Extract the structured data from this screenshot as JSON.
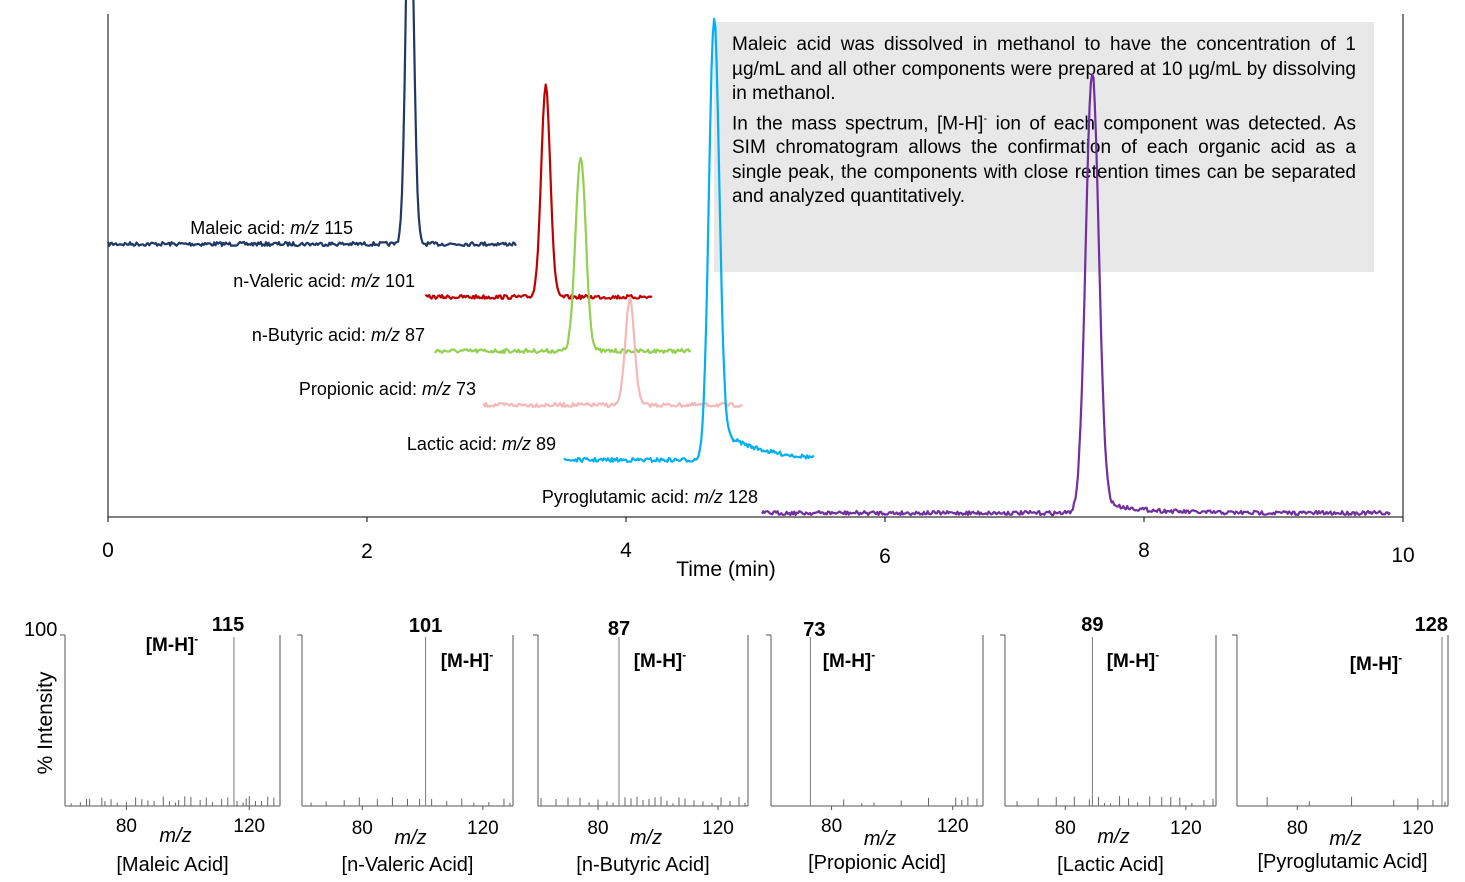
{
  "annotation": {
    "paragraph1": "Maleic acid was dissolved in methanol to have the concentration of 1 µg/mL and all other components were prepared at 10 µg/mL by dissolving in methanol.",
    "paragraph2_before": "In the mass spectrum, [M-H]",
    "paragraph2_sup": "-",
    "paragraph2_after": " ion of each component was detected. As SIM chromatogram allows the confirmation of each organic acid as a single peak, the components with close retention times can be separated and analyzed quantitatively."
  },
  "chart_data": [
    {
      "type": "line",
      "xlabel": "Time (min)",
      "xlim": [
        0,
        10
      ],
      "x_ticks": [
        "0",
        "2",
        "4",
        "6",
        "8",
        "10"
      ],
      "ion_prefix": "m/z",
      "series": [
        {
          "name": "Maleic acid:",
          "mz": "115",
          "color": "#1f3864",
          "x_start": 0.0,
          "x_end": 3.15,
          "peak_rt": 2.33,
          "peak_height": 0.88,
          "peak_width": 0.03,
          "tail": 0.0
        },
        {
          "name": "n-Valeric acid:",
          "mz": "101",
          "color": "#c00000",
          "x_start": 2.45,
          "x_end": 4.2,
          "peak_rt": 3.38,
          "peak_height": 0.48,
          "peak_width": 0.035,
          "tail": 0.0
        },
        {
          "name": "n-Butyric acid:",
          "mz": "87",
          "color": "#92d050",
          "x_start": 2.52,
          "x_end": 4.5,
          "peak_rt": 3.65,
          "peak_height": 0.44,
          "peak_width": 0.04,
          "tail": 0.0
        },
        {
          "name": "Propionic acid:",
          "mz": "73",
          "color": "#f4b8b8",
          "x_start": 2.9,
          "x_end": 4.9,
          "peak_rt": 4.03,
          "peak_height": 0.24,
          "peak_width": 0.035,
          "tail": 0.0
        },
        {
          "name": "Lactic acid:",
          "mz": "89",
          "color": "#00b0f0",
          "x_start": 3.52,
          "x_end": 5.45,
          "peak_rt": 4.68,
          "peak_height": 1.0,
          "peak_width": 0.04,
          "tail": 0.08
        },
        {
          "name": "Pyroglutamic acid:",
          "mz": "128",
          "color": "#7030a0",
          "x_start": 5.05,
          "x_end": 9.9,
          "peak_rt": 7.6,
          "peak_height": 1.0,
          "peak_width": 0.05,
          "tail": 0.03
        }
      ]
    },
    {
      "type": "bar",
      "ylabel": "% Intensity",
      "y_tick_top": "100",
      "xlabel": "m/z",
      "x_ticks": [
        "80",
        "120"
      ],
      "xlim": [
        60,
        130
      ],
      "ion_label": "[M-H]",
      "ion_sup": "-",
      "spectra": [
        {
          "compound": "[Maleic Acid]",
          "base_peak": "115",
          "base_mz": 115,
          "minor_peaks": [
            62,
            65,
            67,
            68,
            72,
            73,
            75,
            77,
            80,
            83,
            85,
            87,
            89,
            92,
            94,
            96,
            97,
            99,
            101,
            104,
            106,
            108,
            111,
            113,
            116,
            118,
            119,
            120,
            122,
            124,
            126,
            128
          ]
        },
        {
          "compound": "[n-Valeric Acid]",
          "base_peak": "101",
          "base_mz": 101,
          "minor_peaks": [
            63,
            68,
            74,
            79,
            85,
            90,
            95,
            99,
            103,
            108,
            113,
            117,
            122,
            127,
            129
          ]
        },
        {
          "compound": "[n-Butyric Acid]",
          "base_peak": "87",
          "base_mz": 87,
          "minor_peaks": [
            61,
            66,
            70,
            74,
            77,
            80,
            83,
            85,
            89,
            91,
            93,
            95,
            97,
            99,
            101,
            103,
            105,
            107,
            109,
            112,
            115,
            118,
            121,
            124,
            127,
            129
          ]
        },
        {
          "compound": "[Propionic Acid]",
          "base_peak": "73",
          "base_mz": 73,
          "minor_peaks": [
            84,
            90,
            94,
            103,
            112,
            121,
            123,
            125,
            128
          ]
        },
        {
          "compound": "[Lactic Acid]",
          "base_peak": "89",
          "base_mz": 89,
          "minor_peaks": [
            64,
            71,
            77,
            83,
            88,
            91,
            93,
            95,
            98,
            101,
            104,
            108,
            112,
            115,
            118,
            122,
            126,
            129
          ]
        },
        {
          "compound": "[Pyroglutamic Acid]",
          "base_peak": "128",
          "base_mz": 128,
          "minor_peaks": [
            70,
            84,
            98,
            112,
            120,
            125,
            129
          ]
        }
      ]
    }
  ]
}
